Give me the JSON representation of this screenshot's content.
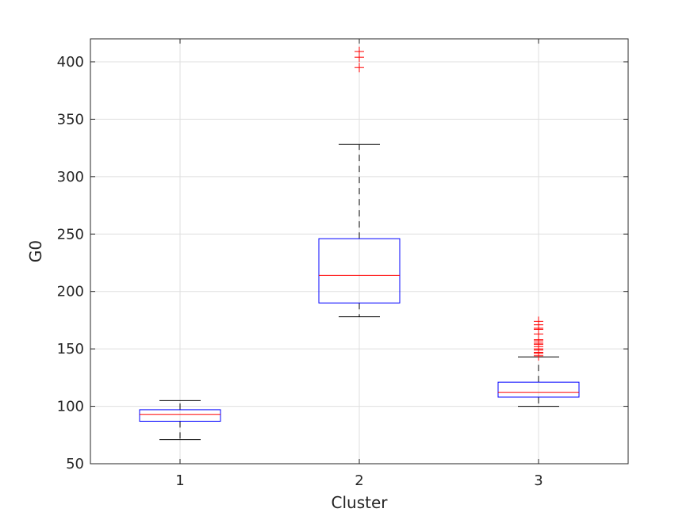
{
  "chart_data": {
    "type": "boxplot",
    "title": "",
    "xlabel": "Cluster",
    "ylabel": "G0",
    "categories": [
      "1",
      "2",
      "3"
    ],
    "ylim": [
      50,
      420
    ],
    "yticks": [
      50,
      100,
      150,
      200,
      250,
      300,
      350,
      400
    ],
    "grid": true,
    "boxes": [
      {
        "category": "1",
        "whisker_low": 71,
        "q1": 87,
        "median": 93,
        "q3": 97,
        "whisker_high": 105,
        "outliers": []
      },
      {
        "category": "2",
        "whisker_low": 178,
        "q1": 190,
        "median": 214,
        "q3": 246,
        "whisker_high": 328,
        "outliers": [
          395,
          404,
          409
        ]
      },
      {
        "category": "3",
        "whisker_low": 100,
        "q1": 108,
        "median": 112,
        "q3": 121,
        "whisker_high": 143,
        "outliers": [
          144,
          146,
          147,
          149,
          150,
          152,
          154,
          155,
          157,
          158,
          163,
          167,
          168,
          171,
          174
        ]
      }
    ],
    "colors": {
      "box": "#0000ff",
      "median": "#ff0000",
      "whisker": "#000000",
      "outlier": "#ff0000",
      "grid": "#dfdfdf",
      "axis": "#262626"
    }
  }
}
